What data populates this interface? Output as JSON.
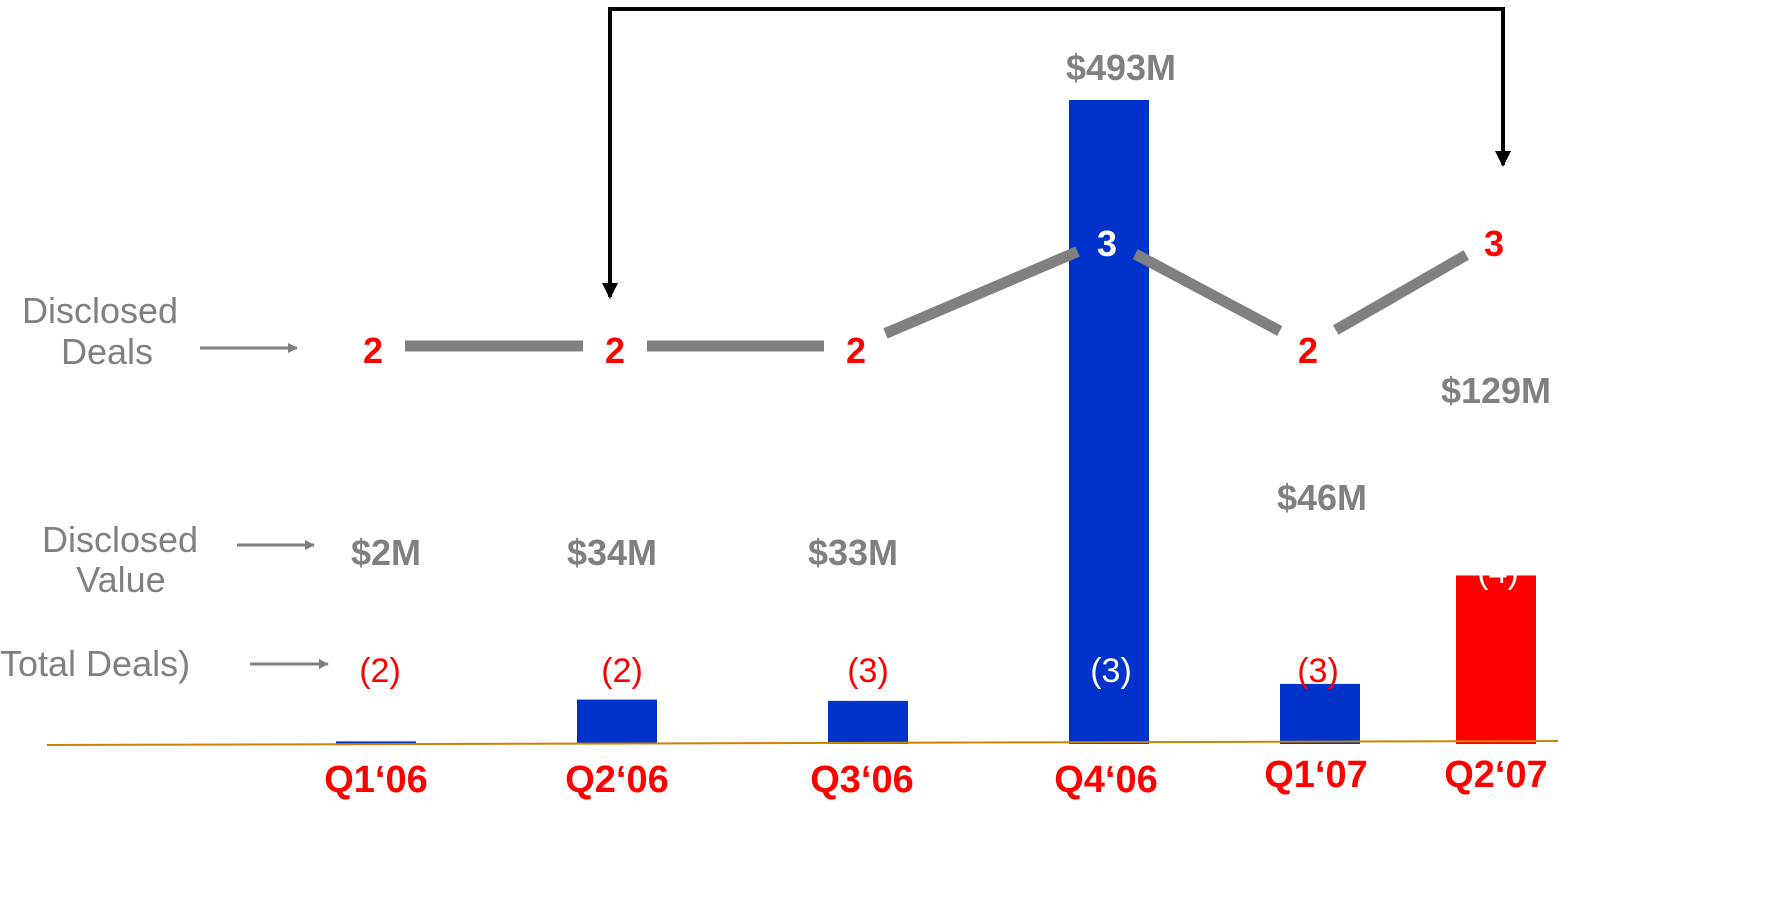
{
  "row_labels": {
    "disclosed_deals": [
      "Disclosed",
      "Deals"
    ],
    "disclosed_value": [
      "Disclosed",
      "Value"
    ],
    "total_deals": "Total Deals)"
  },
  "colors": {
    "bar_blue": "#0033cc",
    "bar_red": "#ff0000",
    "axis": "#cc8400",
    "line": "#808080",
    "label_red": "#ff0000",
    "label_gray": "#808080",
    "bracket": "#000000"
  },
  "chart_data": {
    "type": "bar",
    "title": "",
    "xlabel": "",
    "ylabel": "",
    "categories": [
      "Q1‘06",
      "Q2‘06",
      "Q3‘06",
      "Q4‘06",
      "Q1‘07",
      "Q2‘07"
    ],
    "value_labels": [
      "$2M",
      "$34M",
      "$33M",
      "$493M",
      "$46M",
      "$129M"
    ],
    "total_deals_labels": [
      "(2)",
      "(2)",
      "(3)",
      "(3)",
      "(3)",
      "(4)"
    ],
    "series": [
      {
        "values": [
          2,
          34,
          33,
          493,
          46,
          129
        ]
      },
      {
        "values": [
          2,
          2,
          2,
          3,
          2,
          3
        ]
      }
    ],
    "highlight_category": "Q2‘07",
    "ylim": [
      0,
      493
    ]
  }
}
